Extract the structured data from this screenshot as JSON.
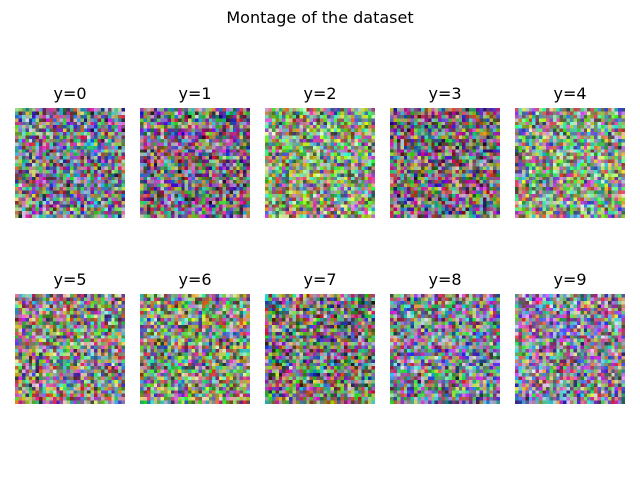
{
  "chart_data": {
    "type": "heatmap",
    "title": "Montage of the dataset",
    "grid": false,
    "layout": "2 rows x 5 columns",
    "image_resolution": [
      32,
      32
    ],
    "panels": [
      {
        "label": "y=0",
        "tint": "#7a7a8a"
      },
      {
        "label": "y=1",
        "tint": "#7a6e7e"
      },
      {
        "label": "y=2",
        "tint": "#8a9a7a"
      },
      {
        "label": "y=3",
        "tint": "#7a6c72"
      },
      {
        "label": "y=4",
        "tint": "#8a9a86"
      },
      {
        "label": "y=5",
        "tint": "#8a887e"
      },
      {
        "label": "y=6",
        "tint": "#86907a"
      },
      {
        "label": "y=7",
        "tint": "#7a7a72"
      },
      {
        "label": "y=8",
        "tint": "#7a8292"
      },
      {
        "label": "y=9",
        "tint": "#8a869a"
      }
    ]
  }
}
